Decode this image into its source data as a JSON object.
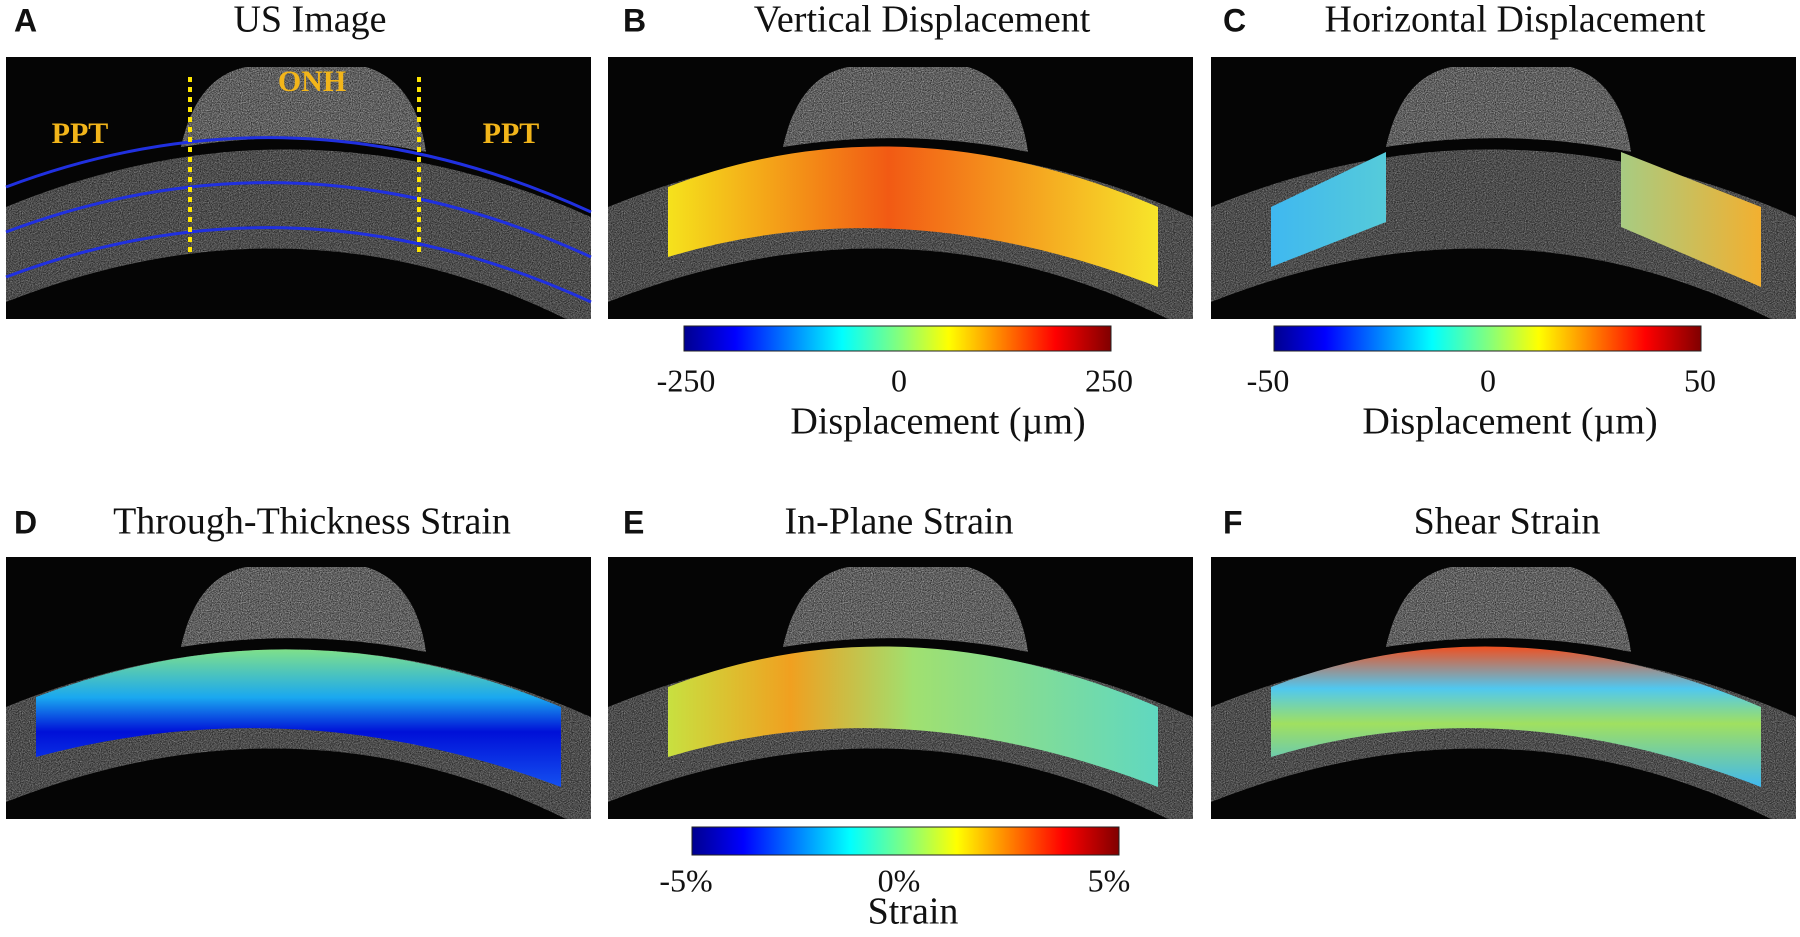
{
  "panels": [
    {
      "letter": "A",
      "title": "US Image",
      "annotations": [
        "PPT",
        "ONH",
        "PPT"
      ]
    },
    {
      "letter": "B",
      "title": "Vertical Displacement"
    },
    {
      "letter": "C",
      "title": "Horizontal Displacement"
    },
    {
      "letter": "D",
      "title": "Through-Thickness Strain"
    },
    {
      "letter": "E",
      "title": "In-Plane Strain"
    },
    {
      "letter": "F",
      "title": "Shear Strain"
    }
  ],
  "colorbars": [
    {
      "ticks": [
        "-250",
        "0",
        "250"
      ],
      "label": "Displacement (µm)"
    },
    {
      "ticks": [
        "-50",
        "0",
        "50"
      ],
      "label": "Displacement (µm)"
    },
    {
      "ticks": [
        "-5%",
        "0%",
        "5%"
      ],
      "label": "Strain"
    }
  ]
}
